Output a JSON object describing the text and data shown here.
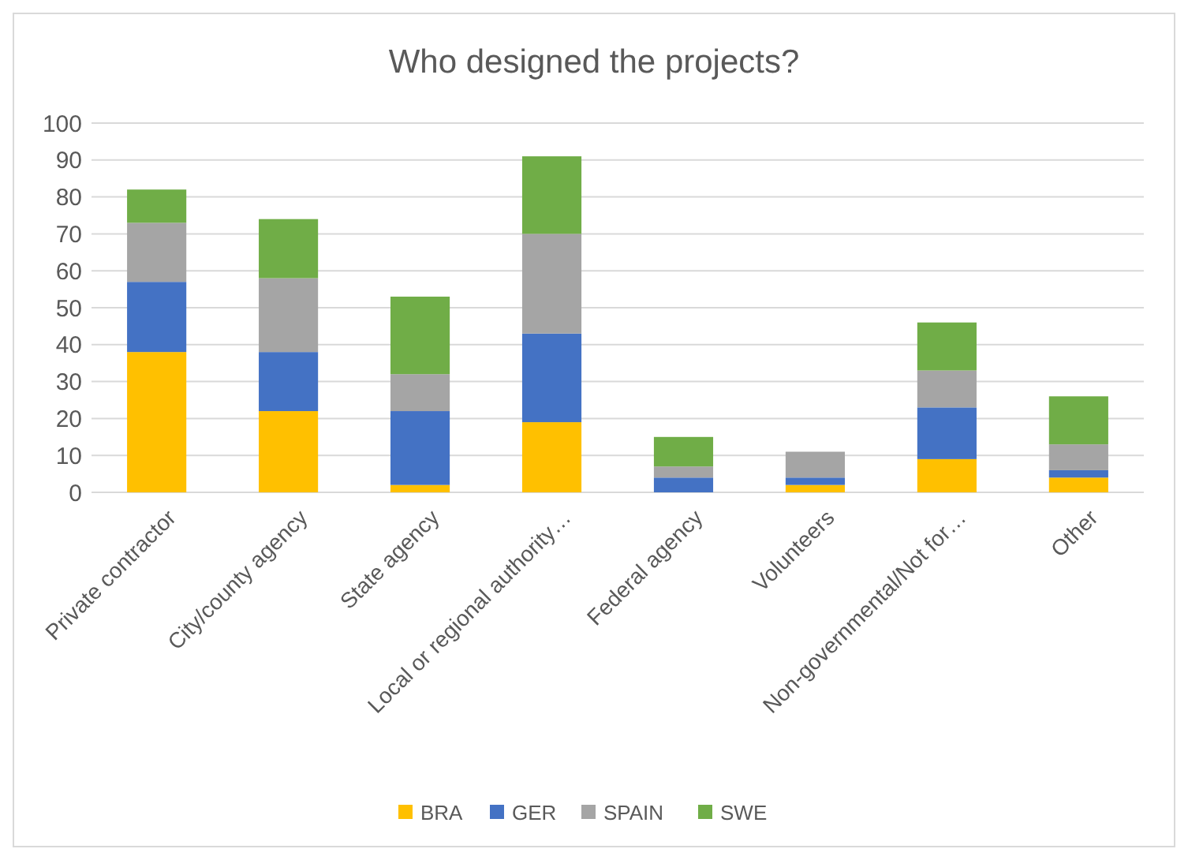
{
  "chart_data": {
    "type": "bar",
    "title": "Who designed the projects?",
    "categories": [
      "Private contractor",
      "City/county agency",
      "State agency",
      "Local or regional authority…",
      "Federal agency",
      "Volunteers",
      "Non-governmental/Not for…",
      "Other"
    ],
    "series": [
      {
        "name": "BRA",
        "color": "#ffc000",
        "values": [
          38,
          22,
          2,
          19,
          0,
          2,
          9,
          4
        ]
      },
      {
        "name": "GER",
        "color": "#4472c4",
        "values": [
          19,
          16,
          20,
          24,
          4,
          2,
          14,
          2
        ]
      },
      {
        "name": "SPAIN",
        "color": "#a5a5a5",
        "values": [
          16,
          20,
          10,
          27,
          3,
          7,
          10,
          7
        ]
      },
      {
        "name": "SWE",
        "color": "#70ad47",
        "values": [
          9,
          16,
          21,
          21,
          8,
          0,
          13,
          13
        ]
      }
    ],
    "stacked": true,
    "ylim": [
      0,
      100
    ],
    "yticks": [
      0,
      10,
      20,
      30,
      40,
      50,
      60,
      70,
      80,
      90,
      100
    ],
    "grid": "y",
    "legend": "bottom"
  }
}
